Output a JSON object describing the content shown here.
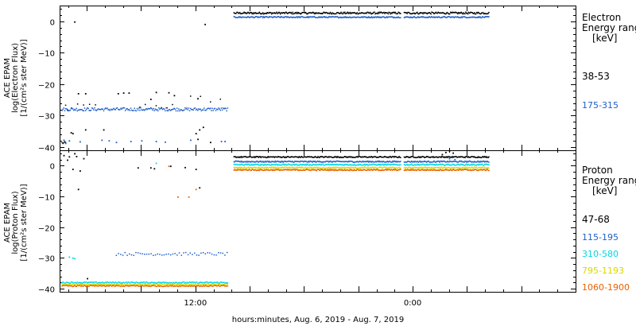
{
  "chart_data": [
    {
      "type": "scatter",
      "ylabel": [
        "ACE EPAM",
        "log(Electron Flux)",
        "[1/(cm²s ster MeV)]"
      ],
      "ylim": [
        -41,
        5
      ],
      "yticks": [
        0,
        -10,
        -20,
        -30,
        -40
      ],
      "xlim": [
        4.5,
        33
      ],
      "xticks": [
        {
          "x": 12,
          "label": "12:00"
        },
        {
          "x": 24,
          "label": "0:00"
        }
      ],
      "legend_title": [
        "Electron",
        "Energy range",
        "[keV]"
      ],
      "series": [
        {
          "name": "38-53",
          "color": "#000000",
          "segments": [
            {
              "x0": 4.6,
              "x1": 4.8,
              "y": -38.5,
              "jitter": 0.4,
              "step": 0.05
            },
            {
              "x0": 4.8,
              "x1": 6.6,
              "y": -26.8,
              "jitter": 0.9,
              "step": 0.33
            },
            {
              "x0": 8.9,
              "x1": 10.8,
              "y": -26.8,
              "jitter": 0.9,
              "step": 0.3
            },
            {
              "x0": 11.7,
              "x1": 13.5,
              "y": -24.5,
              "jitter": 1.2,
              "step": 0.55
            },
            {
              "x0": 14.1,
              "x1": 23.3,
              "y": 2.8,
              "jitter": 0.3,
              "step": 0.04
            },
            {
              "x0": 23.5,
              "x1": 28.2,
              "y": 2.8,
              "jitter": 0.3,
              "step": 0.04
            }
          ],
          "points": [
            {
              "x": 5.3,
              "y": 0
            },
            {
              "x": 4.9,
              "y": -28
            },
            {
              "x": 5.5,
              "y": -22.8
            },
            {
              "x": 5.9,
              "y": -22.8
            },
            {
              "x": 5.2,
              "y": -35.5
            },
            {
              "x": 5.1,
              "y": -35.2
            },
            {
              "x": 5.9,
              "y": -34.3
            },
            {
              "x": 6.9,
              "y": -34.3
            },
            {
              "x": 12.5,
              "y": -0.8
            },
            {
              "x": 12,
              "y": -35.5
            },
            {
              "x": 12.2,
              "y": -34.3
            },
            {
              "x": 12.4,
              "y": -33.5
            },
            {
              "x": 12.8,
              "y": -38.3
            },
            {
              "x": 12.1,
              "y": -37.3
            },
            {
              "x": 8.0,
              "y": -22.6
            },
            {
              "x": 8.3,
              "y": -22.6
            },
            {
              "x": 9.8,
              "y": -22.4
            },
            {
              "x": 10.5,
              "y": -22.5
            },
            {
              "x": 7.7,
              "y": -22.8
            },
            {
              "x": 10.8,
              "y": -23.4
            },
            {
              "x": 9.5,
              "y": -24.6
            },
            {
              "x": 12.1,
              "y": -24.4
            }
          ]
        },
        {
          "name": "175-315",
          "color": "#1f5fc8",
          "segments": [
            {
              "x0": 4.6,
              "x1": 13.8,
              "y": -27.8,
              "jitter": 0.5,
              "step": 0.05
            },
            {
              "x0": 14.1,
              "x1": 23.3,
              "y": 1.5,
              "jitter": 0.2,
              "step": 0.04
            },
            {
              "x0": 23.5,
              "x1": 28.2,
              "y": 1.5,
              "jitter": 0.2,
              "step": 0.04
            }
          ],
          "points": [
            {
              "x": 4.7,
              "y": -37.6
            },
            {
              "x": 5.0,
              "y": -37.8
            },
            {
              "x": 5.6,
              "y": -38.1
            },
            {
              "x": 6.8,
              "y": -37.6
            },
            {
              "x": 7.2,
              "y": -37.8
            },
            {
              "x": 7.6,
              "y": -38.3
            },
            {
              "x": 8.4,
              "y": -38.0
            },
            {
              "x": 9.0,
              "y": -37.8
            },
            {
              "x": 9.8,
              "y": -38.0
            },
            {
              "x": 10.3,
              "y": -38.2
            },
            {
              "x": 11.7,
              "y": -37.6
            },
            {
              "x": 13.4,
              "y": -38.0
            },
            {
              "x": 13.6,
              "y": -38.0
            },
            {
              "x": 4.8,
              "y": -38.6
            }
          ]
        }
      ]
    },
    {
      "type": "scatter",
      "ylabel": [
        "ACE EPAM",
        "log(Proton Flux)",
        "[1/(cm²s ster MeV)]"
      ],
      "ylim": [
        -41,
        5
      ],
      "yticks": [
        0,
        -10,
        -20,
        -30,
        -40
      ],
      "xlim": [
        4.5,
        33
      ],
      "xticks": [
        {
          "x": 12,
          "label": "12:00"
        },
        {
          "x": 24,
          "label": "0:00"
        }
      ],
      "xlabel": "hours:minutes, Aug.  6, 2019 - Aug.  7, 2019",
      "legend_title": [
        "Proton",
        "Energy range",
        "[keV]"
      ],
      "series": [
        {
          "name": "47-68",
          "color": "#000000",
          "segments": [
            {
              "x0": 14.1,
              "x1": 23.3,
              "y": 3.0,
              "jitter": 0.2,
              "step": 0.04
            },
            {
              "x0": 23.5,
              "x1": 28.2,
              "y": 3.0,
              "jitter": 0.2,
              "step": 0.04
            }
          ],
          "points": [
            {
              "x": 4.7,
              "y": 3.5
            },
            {
              "x": 5.0,
              "y": 3.1
            },
            {
              "x": 5.3,
              "y": 4.1
            },
            {
              "x": 4.9,
              "y": 2.0
            },
            {
              "x": 5.4,
              "y": 3.2
            },
            {
              "x": 5.8,
              "y": 2.5
            },
            {
              "x": 5.5,
              "y": -7.5
            },
            {
              "x": 5.2,
              "y": -1.0
            },
            {
              "x": 5.6,
              "y": -1.5
            },
            {
              "x": 6.0,
              "y": -36.5
            },
            {
              "x": 8.8,
              "y": -0.5
            },
            {
              "x": 9.5,
              "y": -0.5
            },
            {
              "x": 9.7,
              "y": -0.8
            },
            {
              "x": 10.6,
              "y": 0.0
            },
            {
              "x": 11.4,
              "y": -0.4
            },
            {
              "x": 12.0,
              "y": -1.0
            },
            {
              "x": 12.2,
              "y": -7.0
            },
            {
              "x": 25.8,
              "y": 4.5
            },
            {
              "x": 26.0,
              "y": 5.0
            },
            {
              "x": 26.2,
              "y": 4.3
            },
            {
              "x": 25.6,
              "y": 3.8
            }
          ]
        },
        {
          "name": "115-195",
          "color": "#1f5fc8",
          "segments": [
            {
              "x0": 7.6,
              "x1": 13.8,
              "y": -28.5,
              "jitter": 0.5,
              "step": 0.12
            },
            {
              "x0": 14.1,
              "x1": 23.3,
              "y": 1.5,
              "jitter": 0.2,
              "step": 0.04
            },
            {
              "x0": 23.5,
              "x1": 28.2,
              "y": 1.5,
              "jitter": 0.2,
              "step": 0.04
            }
          ],
          "points": [
            {
              "x": 26.0,
              "y": 2.5
            },
            {
              "x": 26.3,
              "y": 2.2
            }
          ]
        },
        {
          "name": "310-580",
          "color": "#00d8e0",
          "segments": [
            {
              "x0": 4.6,
              "x1": 13.8,
              "y": -37.8,
              "jitter": 0.2,
              "step": 0.05
            },
            {
              "x0": 14.1,
              "x1": 23.3,
              "y": 0.5,
              "jitter": 0.2,
              "step": 0.04
            },
            {
              "x0": 23.5,
              "x1": 28.2,
              "y": 0.5,
              "jitter": 0.2,
              "step": 0.04
            }
          ],
          "points": [
            {
              "x": 5.0,
              "y": -29.5
            },
            {
              "x": 5.2,
              "y": -29.8
            },
            {
              "x": 5.3,
              "y": -30.0
            },
            {
              "x": 9.8,
              "y": 1.0
            }
          ]
        },
        {
          "name": "795-1193",
          "color": "#d8d800",
          "segments": [
            {
              "x0": 4.6,
              "x1": 13.8,
              "y": -38.4,
              "jitter": 0.2,
              "step": 0.05
            },
            {
              "x0": 14.1,
              "x1": 23.3,
              "y": -0.5,
              "jitter": 0.2,
              "step": 0.04
            },
            {
              "x0": 23.5,
              "x1": 28.2,
              "y": -0.5,
              "jitter": 0.2,
              "step": 0.04
            }
          ],
          "points": []
        },
        {
          "name": "1060-1900",
          "color": "#e86000",
          "segments": [
            {
              "x0": 4.6,
              "x1": 13.8,
              "y": -38.9,
              "jitter": 0.2,
              "step": 0.05
            },
            {
              "x0": 14.1,
              "x1": 23.3,
              "y": -1.2,
              "jitter": 0.2,
              "step": 0.04
            },
            {
              "x0": 23.5,
              "x1": 28.2,
              "y": -1.2,
              "jitter": 0.2,
              "step": 0.04
            }
          ],
          "points": [
            {
              "x": 11.0,
              "y": -10.0
            },
            {
              "x": 11.6,
              "y": -10.0
            },
            {
              "x": 10.5,
              "y": 0.0
            },
            {
              "x": 12.0,
              "y": -7.5
            }
          ]
        }
      ]
    }
  ]
}
